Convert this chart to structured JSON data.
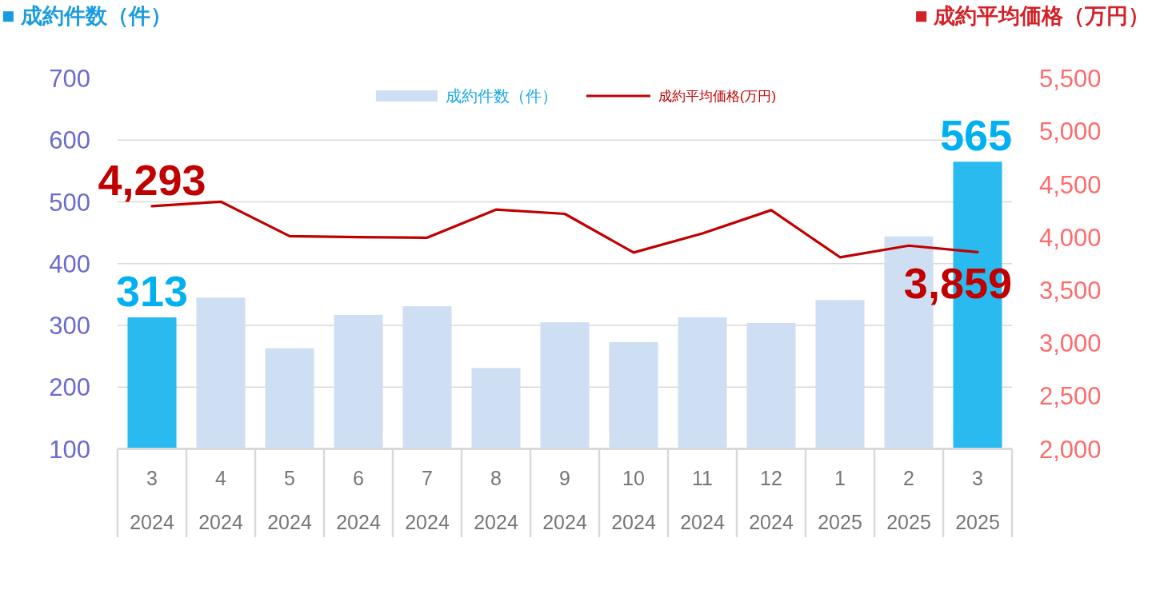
{
  "chart_data": {
    "type": "bar",
    "ylabel": "■ 成約件数（件）",
    "y2label": "■ 成約平均価格（万円）",
    "categories": [
      "3\n2024",
      "4\n2024",
      "5\n2024",
      "6\n2024",
      "7\n2024",
      "8\n2024",
      "9\n2024",
      "10\n2024",
      "11\n2024",
      "12\n2024",
      "1\n2025",
      "2\n2025",
      "3\n2025"
    ],
    "series": [
      {
        "name": "成約件数（件）",
        "color": "#cfdff3",
        "colors": [
          "#29bbef",
          "#cfdff3",
          "#cfdff3",
          "#cfdff3",
          "#cfdff3",
          "#cfdff3",
          "#cfdff3",
          "#cfdff3",
          "#cfdff3",
          "#cfdff3",
          "#cfdff3",
          "#cfdff3",
          "#29bbef"
        ],
        "values": [
          313,
          345,
          263,
          317,
          331,
          231,
          305,
          273,
          313,
          304,
          341,
          444,
          565
        ],
        "value_labels": [
          "313",
          null,
          null,
          null,
          null,
          null,
          null,
          null,
          null,
          null,
          null,
          null,
          "565"
        ]
      },
      {
        "name": "成約平均価格(万円)",
        "type": "line",
        "axis": "y2",
        "color": "#c00000",
        "values": [
          4293,
          4335,
          4010,
          4000,
          3995,
          4260,
          4220,
          3855,
          4035,
          4255,
          3810,
          3920,
          3859
        ],
        "value_labels": [
          "4,293",
          null,
          null,
          null,
          null,
          null,
          null,
          null,
          null,
          null,
          null,
          null,
          "3,859"
        ]
      }
    ],
    "ylim": [
      100,
      700
    ],
    "yticks": [
      100,
      200,
      300,
      400,
      500,
      600,
      700
    ],
    "y2lim": [
      2000,
      5500
    ],
    "y2ticks": [
      {
        "value": 2000,
        "label": "2,000"
      },
      {
        "value": 2500,
        "label": "2,500"
      },
      {
        "value": 3000,
        "label": "3,000"
      },
      {
        "value": 3500,
        "label": "3,500"
      },
      {
        "value": 4000,
        "label": "4,000"
      },
      {
        "value": 4500,
        "label": "4,500"
      },
      {
        "value": 5000,
        "label": "5,000"
      },
      {
        "value": 5500,
        "label": "5,500"
      }
    ],
    "grid": "y",
    "legend": "top"
  }
}
